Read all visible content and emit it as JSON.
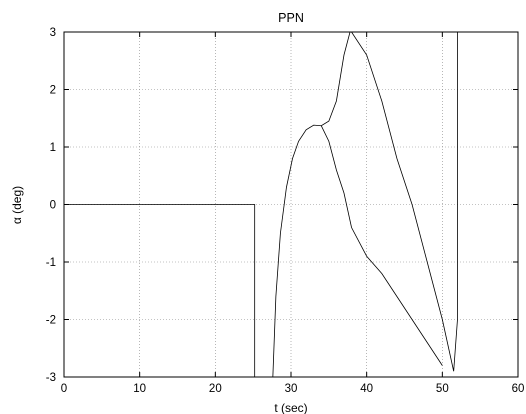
{
  "chart_data": {
    "type": "line",
    "title": "PPN",
    "xlabel": "t (sec)",
    "ylabel": "α (deg)",
    "xlim": [
      0,
      60
    ],
    "ylim": [
      -3,
      3
    ],
    "xticks": [
      0,
      10,
      20,
      30,
      40,
      50,
      60
    ],
    "yticks": [
      -3,
      -2,
      -1,
      0,
      1,
      2,
      3
    ],
    "grid": true,
    "line_color": "#000000",
    "series": [
      {
        "points": [
          [
            0,
            0
          ],
          [
            25.2,
            0
          ],
          [
            25.2,
            -3
          ],
          [
            27.6,
            -3
          ],
          [
            28.0,
            -1.6
          ],
          [
            28.6,
            -0.5
          ],
          [
            29.4,
            0.3
          ],
          [
            30.2,
            0.8
          ],
          [
            31.0,
            1.1
          ],
          [
            32.0,
            1.3
          ],
          [
            33.0,
            1.38
          ],
          [
            34.0,
            1.37
          ],
          [
            35.0,
            1.45
          ],
          [
            36.0,
            1.8
          ],
          [
            37.0,
            2.6
          ],
          [
            37.8,
            3.0
          ]
        ]
      },
      {
        "points": [
          [
            34.0,
            1.37
          ],
          [
            35.0,
            1.1
          ],
          [
            36.0,
            0.6
          ],
          [
            37.0,
            0.2
          ],
          [
            38.0,
            -0.4
          ],
          [
            40.0,
            -0.9
          ],
          [
            42.0,
            -1.2
          ],
          [
            44.0,
            -1.6
          ],
          [
            46.0,
            -2.0
          ],
          [
            48.0,
            -2.4
          ],
          [
            50.0,
            -2.8
          ]
        ]
      },
      {
        "points": [
          [
            38.0,
            3.0
          ],
          [
            40.0,
            2.6
          ],
          [
            42.0,
            1.8
          ],
          [
            44.0,
            0.8
          ],
          [
            46.0,
            0.0
          ],
          [
            48.0,
            -1.0
          ],
          [
            50.0,
            -2.0
          ],
          [
            51.5,
            -2.9
          ],
          [
            52.0,
            -2.0
          ],
          [
            52.0,
            3.0
          ]
        ]
      }
    ]
  }
}
